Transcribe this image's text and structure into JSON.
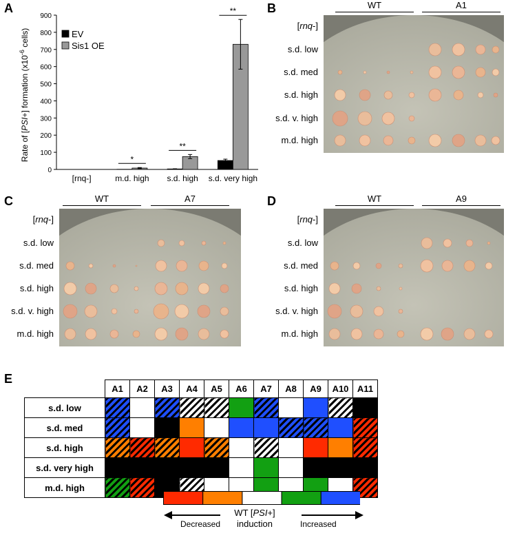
{
  "panels": {
    "A": "A",
    "B": "B",
    "C": "C",
    "D": "D",
    "E": "E"
  },
  "chart_data": {
    "type": "bar",
    "categories": [
      "[rnq-]",
      "m.d. high",
      "s.d. high",
      "s.d. very high"
    ],
    "series": [
      {
        "name": "EV",
        "values": [
          0,
          1,
          3,
          52
        ],
        "errors": [
          0,
          0,
          1,
          8
        ]
      },
      {
        "name": "Sis1 OE",
        "values": [
          0,
          8,
          75,
          730
        ],
        "errors": [
          0,
          3,
          12,
          145
        ]
      }
    ],
    "ylabel": "Rate of [PSI+] formation (x10-6 cells)",
    "ylabel_parts": {
      "pre": "Rate of [",
      "italic": "PSI",
      "post": "+] formation (x10",
      "sup": "-6",
      "end": " cells)"
    },
    "ylim": [
      0,
      900
    ],
    "yticks": [
      0,
      100,
      200,
      300,
      400,
      500,
      600,
      700,
      800,
      900
    ],
    "significance": [
      "",
      "*",
      "**",
      "**"
    ],
    "legend_position": "top-left",
    "colors": {
      "EV": "#000000",
      "Sis1 OE": "#999999"
    }
  },
  "plates": {
    "B": {
      "strains": [
        "WT",
        "A1"
      ],
      "rows": [
        "[rnq-]",
        "s.d. low",
        "s.d. med",
        "s.d. high",
        "s.d. v. high",
        "m.d. high"
      ]
    },
    "C": {
      "strains": [
        "WT",
        "A7"
      ],
      "rows": [
        "[rnq-]",
        "s.d. low",
        "s.d. med",
        "s.d. high",
        "s.d. v. high",
        "m.d. high"
      ]
    },
    "D": {
      "strains": [
        "WT",
        "A9"
      ],
      "rows": [
        "[rnq-]",
        "s.d. low",
        "s.d. med",
        "s.d. high",
        "s.d. v. high",
        "m.d. high"
      ]
    }
  },
  "heatmap": {
    "columns": [
      "A1",
      "A2",
      "A3",
      "A4",
      "A5",
      "A6",
      "A7",
      "A8",
      "A9",
      "A10",
      "A11"
    ],
    "rows": [
      {
        "label": "s.d. low",
        "cells": [
          "blue-h",
          "white",
          "blue-h",
          "white-h",
          "white-h",
          "green",
          "blue-h",
          "white",
          "blue",
          "white-h",
          "black"
        ]
      },
      {
        "label": "s.d. med",
        "cells": [
          "blue-h",
          "white",
          "black",
          "orange",
          "white",
          "blue",
          "blue",
          "blue-h",
          "blue-h",
          "blue",
          "red-h"
        ]
      },
      {
        "label": "s.d. high",
        "cells": [
          "orange-h",
          "red-h",
          "orange-h",
          "red",
          "orange-h",
          "white",
          "white-h",
          "white",
          "red",
          "orange",
          "red-h"
        ]
      },
      {
        "label": "s.d. very high",
        "cells": [
          "black",
          "black",
          "black",
          "black",
          "black",
          "white",
          "green",
          "white",
          "black",
          "black",
          "black"
        ]
      },
      {
        "label": "m.d. high",
        "cells": [
          "green-h",
          "red-h",
          "black",
          "white-h",
          "white",
          "white",
          "green",
          "white",
          "green",
          "white",
          "red-h"
        ]
      }
    ],
    "colors": {
      "red": "#ff2a00",
      "orange": "#ff7f00",
      "white": "#ffffff",
      "green": "#12a012",
      "blue": "#1f4fff",
      "black": "#000000"
    }
  },
  "scale": {
    "colors": [
      "#ff2a00",
      "#ff7f00",
      "#ffffff",
      "#12a012",
      "#1f4fff"
    ],
    "title_pre": "WT [",
    "title_italic": "PSI",
    "title_post": "+]",
    "title_line2": "induction",
    "left_label": "Decreased",
    "right_label": "Increased"
  }
}
